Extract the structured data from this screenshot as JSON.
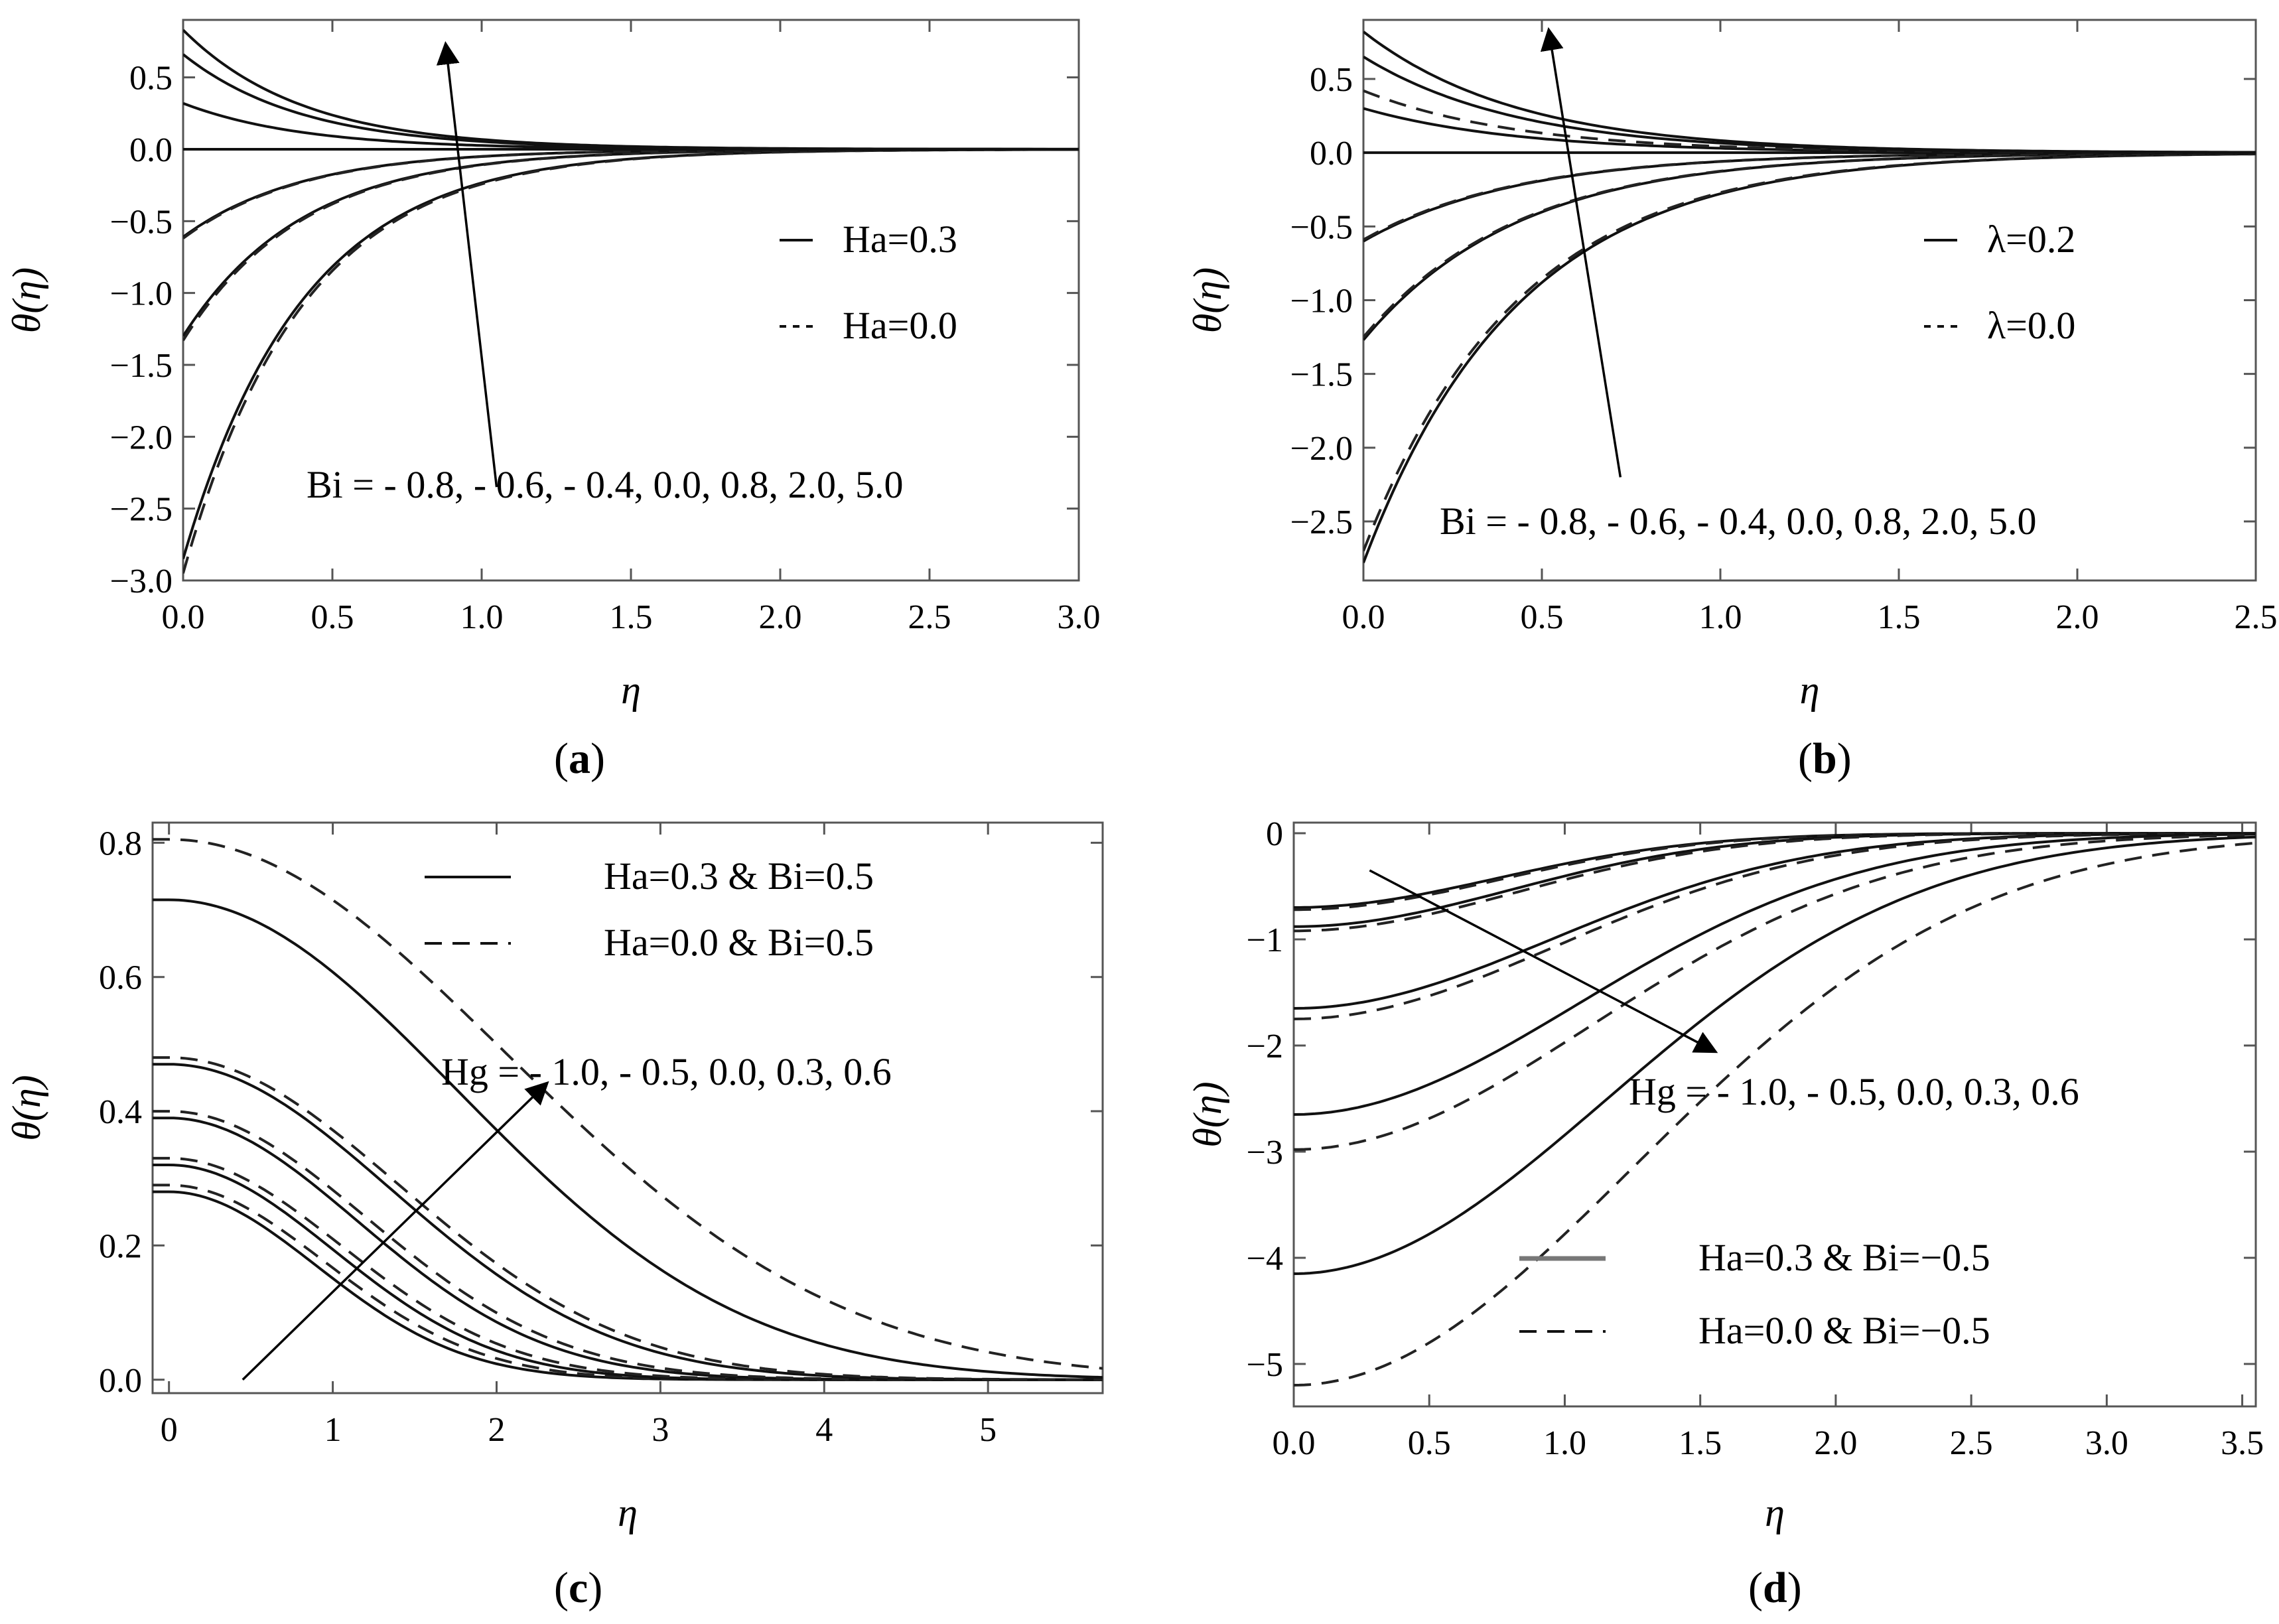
{
  "chart_data": [
    {
      "panel": "a",
      "type": "line",
      "caption_letter": "a",
      "xlabel": "η",
      "ylabel": "θ(η)",
      "xlim": [
        0,
        3.0
      ],
      "ylim": [
        -3.0,
        0.9
      ],
      "xticks": [
        "0.0",
        "0.5",
        "1.0",
        "1.5",
        "2.0",
        "2.5",
        "3.0"
      ],
      "yticks": [
        "0.5",
        "0.0",
        "-0.5",
        "-1.0",
        "-1.5",
        "-2.0",
        "-2.5",
        "-3.0"
      ],
      "decay": 2.5,
      "legend": [
        {
          "label": "Ha=0.3",
          "style": "solid"
        },
        {
          "label": "Ha=0.0",
          "style": "dotted"
        }
      ],
      "annotation": "Bi = - 0.8, - 0.6, - 0.4, 0.0, 0.8, 2.0, 5.0",
      "arrow": {
        "from": [
          1.05,
          -2.35
        ],
        "to": [
          0.88,
          0.72
        ]
      },
      "series": [
        {
          "name": "Bi=-0.8, Ha=0.3",
          "style": "solid",
          "theta0": -2.85
        },
        {
          "name": "Bi=-0.8, Ha=0.0",
          "style": "dashed",
          "theta0": -2.95
        },
        {
          "name": "Bi=-0.6, Ha=0.3",
          "style": "solid",
          "theta0": -1.3
        },
        {
          "name": "Bi=-0.6, Ha=0.0",
          "style": "dashed",
          "theta0": -1.33
        },
        {
          "name": "Bi=-0.4, Ha=0.3",
          "style": "solid",
          "theta0": -0.61
        },
        {
          "name": "Bi=-0.4, Ha=0.0",
          "style": "dashed",
          "theta0": -0.62
        },
        {
          "name": "Bi=0.0",
          "style": "solid",
          "theta0": 0.0
        },
        {
          "name": "Bi=0.8",
          "style": "solid",
          "theta0": 0.32
        },
        {
          "name": "Bi=2.0",
          "style": "solid",
          "theta0": 0.66
        },
        {
          "name": "Bi=5.0",
          "style": "solid",
          "theta0": 0.83
        }
      ]
    },
    {
      "panel": "b",
      "type": "line",
      "caption_letter": "b",
      "xlabel": "η",
      "ylabel": "θ(η)",
      "xlim": [
        0,
        2.5
      ],
      "ylim": [
        -2.9,
        0.9
      ],
      "xticks": [
        "0.0",
        "0.5",
        "1.0",
        "1.5",
        "2.0",
        "2.5"
      ],
      "yticks": [
        "0.5",
        "0.0",
        "-0.5",
        "-1.0",
        "-1.5",
        "-2.0",
        "-2.5"
      ],
      "decay": 2.3,
      "legend": [
        {
          "label": "λ=0.2",
          "style": "solid"
        },
        {
          "label": "λ=0.0",
          "style": "dotted"
        }
      ],
      "annotation": "Bi = - 0.8, - 0.6, - 0.4, 0.0, 0.8, 2.0, 5.0",
      "arrow": {
        "from": [
          0.72,
          -2.2
        ],
        "to": [
          0.52,
          0.82
        ]
      },
      "series": [
        {
          "name": "Bi=-0.8, λ=0.2",
          "style": "solid",
          "theta0": -2.78
        },
        {
          "name": "Bi=-0.8, λ=0.0",
          "style": "dashed",
          "theta0": -2.7
        },
        {
          "name": "Bi=-0.6, λ=0.2",
          "style": "solid",
          "theta0": -1.27
        },
        {
          "name": "Bi=-0.6, λ=0.0",
          "style": "dashed",
          "theta0": -1.25
        },
        {
          "name": "Bi=-0.4, λ=0.2",
          "style": "solid",
          "theta0": -0.6
        },
        {
          "name": "Bi=-0.4, λ=0.0",
          "style": "dashed",
          "theta0": -0.59
        },
        {
          "name": "Bi=0.0",
          "style": "solid",
          "theta0": 0.0
        },
        {
          "name": "Bi=0.8, λ=0.2",
          "style": "solid",
          "theta0": 0.3
        },
        {
          "name": "Bi=0.8, λ=0.0",
          "style": "dashed",
          "theta0": 0.42
        },
        {
          "name": "Bi=2.0",
          "style": "solid",
          "theta0": 0.65
        },
        {
          "name": "Bi=5.0",
          "style": "solid",
          "theta0": 0.82
        }
      ]
    },
    {
      "panel": "c",
      "type": "line",
      "caption_letter": "c",
      "xlabel": "η",
      "ylabel": "θ(η)",
      "xlim": [
        -0.1,
        5.7
      ],
      "ylim": [
        -0.02,
        0.83
      ],
      "xticks": [
        "0",
        "1",
        "2",
        "3",
        "4",
        "5"
      ],
      "yticks": [
        "0.8",
        "0.6",
        "0.4",
        "0.2",
        "0.0"
      ],
      "legend": [
        {
          "label": "Ha=0.3 & Bi=0.5",
          "style": "solid"
        },
        {
          "label": "Ha=0.0 & Bi=0.5",
          "style": "dashed"
        }
      ],
      "annotation": "Hg = - 1.0, - 0.5, 0.0, 0.3, 0.6",
      "arrow": {
        "from": [
          0.45,
          0.0
        ],
        "to": [
          2.3,
          0.44
        ]
      },
      "series": [
        {
          "name": "Hg=-1.0, Ha=0.3",
          "style": "solid",
          "theta0": 0.28,
          "width": 0.9
        },
        {
          "name": "Hg=-1.0, Ha=0.0",
          "style": "dashed",
          "theta0": 0.29,
          "width": 0.95
        },
        {
          "name": "Hg=-0.5, Ha=0.3",
          "style": "solid",
          "theta0": 0.32,
          "width": 1.0
        },
        {
          "name": "Hg=-0.5, Ha=0.0",
          "style": "dashed",
          "theta0": 0.33,
          "width": 1.05
        },
        {
          "name": "Hg=0.0, Ha=0.3",
          "style": "solid",
          "theta0": 0.39,
          "width": 1.15
        },
        {
          "name": "Hg=0.0, Ha=0.0",
          "style": "dashed",
          "theta0": 0.4,
          "width": 1.2
        },
        {
          "name": "Hg=0.3, Ha=0.3",
          "style": "solid",
          "theta0": 0.47,
          "width": 1.35
        },
        {
          "name": "Hg=0.3, Ha=0.0",
          "style": "dashed",
          "theta0": 0.48,
          "width": 1.4
        },
        {
          "name": "Hg=0.6, Ha=0.3",
          "style": "solid",
          "theta0": 0.715,
          "width": 1.75
        },
        {
          "name": "Hg=0.6, Ha=0.0",
          "style": "dashed",
          "theta0": 0.805,
          "width": 2.05
        }
      ]
    },
    {
      "panel": "d",
      "type": "line",
      "caption_letter": "d",
      "xlabel": "η",
      "ylabel": "θ(η)",
      "xlim": [
        0,
        3.55
      ],
      "ylim": [
        -5.4,
        0.1
      ],
      "xticks": [
        "0.0",
        "0.5",
        "1.0",
        "1.5",
        "2.0",
        "2.5",
        "3.0",
        "3.5"
      ],
      "yticks": [
        "0",
        "-1",
        "-2",
        "-3",
        "-4",
        "-5"
      ],
      "legend": [
        {
          "label": "Ha=0.3 & Bi=−0.5",
          "style": "solid"
        },
        {
          "label": "Ha=0.0 & Bi=−0.5",
          "style": "dashed"
        }
      ],
      "annotation": "Hg = - 1.0, - 0.5, 0.0, 0.3, 0.6",
      "arrow": {
        "from": [
          0.28,
          -0.35
        ],
        "to": [
          1.55,
          -2.05
        ]
      },
      "series": [
        {
          "name": "Hg=-1.0, Ha=0.3",
          "style": "solid",
          "theta0": -0.7,
          "width": 0.75
        },
        {
          "name": "Hg=-1.0, Ha=0.0",
          "style": "dashed",
          "theta0": -0.72,
          "width": 0.76
        },
        {
          "name": "Hg=-0.5, Ha=0.3",
          "style": "solid",
          "theta0": -0.88,
          "width": 0.8
        },
        {
          "name": "Hg=-0.5, Ha=0.0",
          "style": "dashed",
          "theta0": -0.92,
          "width": 0.82
        },
        {
          "name": "Hg=0.0, Ha=0.3",
          "style": "solid",
          "theta0": -1.65,
          "width": 0.95
        },
        {
          "name": "Hg=0.0, Ha=0.0",
          "style": "dashed",
          "theta0": -1.75,
          "width": 0.97
        },
        {
          "name": "Hg=0.3, Ha=0.3",
          "style": "solid",
          "theta0": -2.65,
          "width": 1.05
        },
        {
          "name": "Hg=0.3, Ha=0.0",
          "style": "dashed",
          "theta0": -2.98,
          "width": 1.1
        },
        {
          "name": "Hg=0.6, Ha=0.3",
          "style": "solid",
          "theta0": -4.15,
          "width": 1.15
        },
        {
          "name": "Hg=0.6, Ha=0.0",
          "style": "dashed",
          "theta0": -5.2,
          "width": 1.25
        }
      ]
    }
  ]
}
